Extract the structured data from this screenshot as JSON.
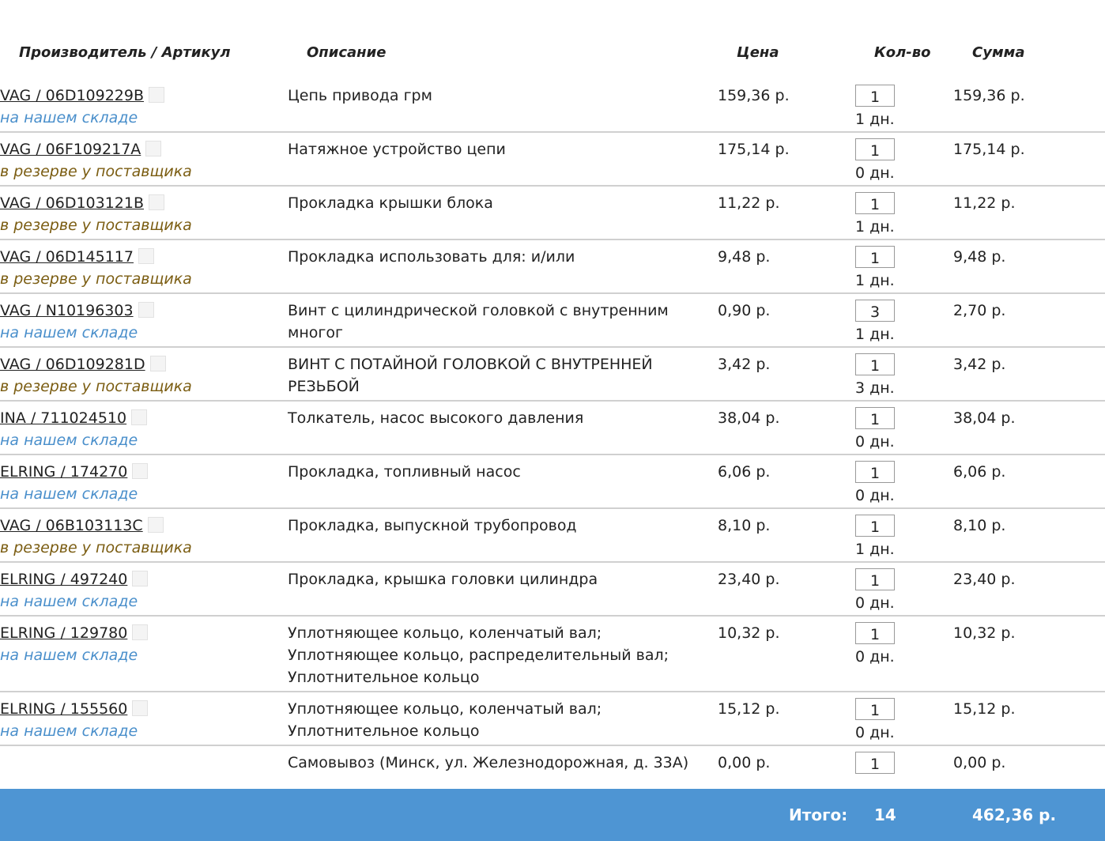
{
  "header": {
    "columns": [
      "Производитель / Артикул",
      "Описание",
      "Цена",
      "Кол-во",
      "Сумма"
    ]
  },
  "rows": [
    {
      "article": "VAG / 06D109229B",
      "status": "на нашем складе",
      "description": [
        "Цепь привода грм"
      ],
      "price": "159,36 р.",
      "qty": "1",
      "days": "1 дн.",
      "sum": "159,36 р."
    },
    {
      "article": "VAG / 06F109217A",
      "status": "в резерве у поставщика",
      "description": [
        "Натяжное устройство цепи"
      ],
      "price": "175,14 р.",
      "qty": "1",
      "days": "0 дн.",
      "sum": "175,14 р."
    },
    {
      "article": "VAG / 06D103121B",
      "status": "в резерве у поставщика",
      "description": [
        "Прокладка крышки блока"
      ],
      "price": "11,22 р.",
      "qty": "1",
      "days": "1 дн.",
      "sum": "11,22 р."
    },
    {
      "article": "VAG / 06D145117",
      "status": "в резерве у поставщика",
      "description": [
        "Прокладка использовать для: и/или"
      ],
      "price": "9,48 р.",
      "qty": "1",
      "days": "1 дн.",
      "sum": "9,48 р."
    },
    {
      "article": "VAG / N10196303",
      "status": "на нашем складе",
      "description": [
        "Винт с цилиндрической головкой с внутренним",
        "многог"
      ],
      "price": "0,90 р.",
      "qty": "3",
      "days": "1 дн.",
      "sum": "2,70 р."
    },
    {
      "article": "VAG / 06D109281D",
      "status": "в резерве у поставщика",
      "description": [
        "ВИНТ С ПОТАЙНОЙ ГОЛОВКОЙ С ВНУТРЕННЕЙ",
        "РЕЗЬБОЙ"
      ],
      "price": "3,42 р.",
      "qty": "1",
      "days": "3 дн.",
      "sum": "3,42 р."
    },
    {
      "article": "INA / 711024510",
      "status": "на нашем складе",
      "description": [
        "Толкатель, насос высокого давления"
      ],
      "price": "38,04 р.",
      "qty": "1",
      "days": "0 дн.",
      "sum": "38,04 р."
    },
    {
      "article": "ELRING / 174270",
      "status": "на нашем складе",
      "description": [
        "Прокладка, топливный насос"
      ],
      "price": "6,06 р.",
      "qty": "1",
      "days": "0 дн.",
      "sum": "6,06 р."
    },
    {
      "article": "VAG / 06B103113C",
      "status": "в резерве у поставщика",
      "description": [
        "Прокладка, выпускной трубопровод"
      ],
      "price": "8,10 р.",
      "qty": "1",
      "days": "1 дн.",
      "sum": "8,10 р."
    },
    {
      "article": "ELRING / 497240",
      "status": "на нашем складе",
      "description": [
        "Прокладка, крышка головки цилиндра"
      ],
      "price": "23,40 р.",
      "qty": "1",
      "days": "0 дн.",
      "sum": "23,40 р."
    },
    {
      "article": "ELRING / 129780",
      "status": "на нашем складе",
      "description": [
        "Уплотняющее кольцо, коленчатый вал;",
        "Уплотняющее кольцо, распределительный вал;",
        "Уплотнительное кольцо"
      ],
      "price": "10,32 р.",
      "qty": "1",
      "days": "0 дн.",
      "sum": "10,32 р."
    },
    {
      "article": "ELRING / 155560",
      "status": "на нашем складе",
      "description": [
        "Уплотняющее кольцо, коленчатый вал;",
        "Уплотнительное кольцо"
      ],
      "price": "15,12 р.",
      "qty": "1",
      "days": "0 дн.",
      "sum": "15,12 р."
    },
    {
      "description": [
        "Самовывоз (Минск, ул. Железнодорожная, д. 33А)"
      ],
      "price": "0,00 р.",
      "qty": "1",
      "sum": "0,00 р."
    }
  ],
  "footer": {
    "label": "Итого:",
    "qty": "14",
    "sum": "462,36 р."
  }
}
